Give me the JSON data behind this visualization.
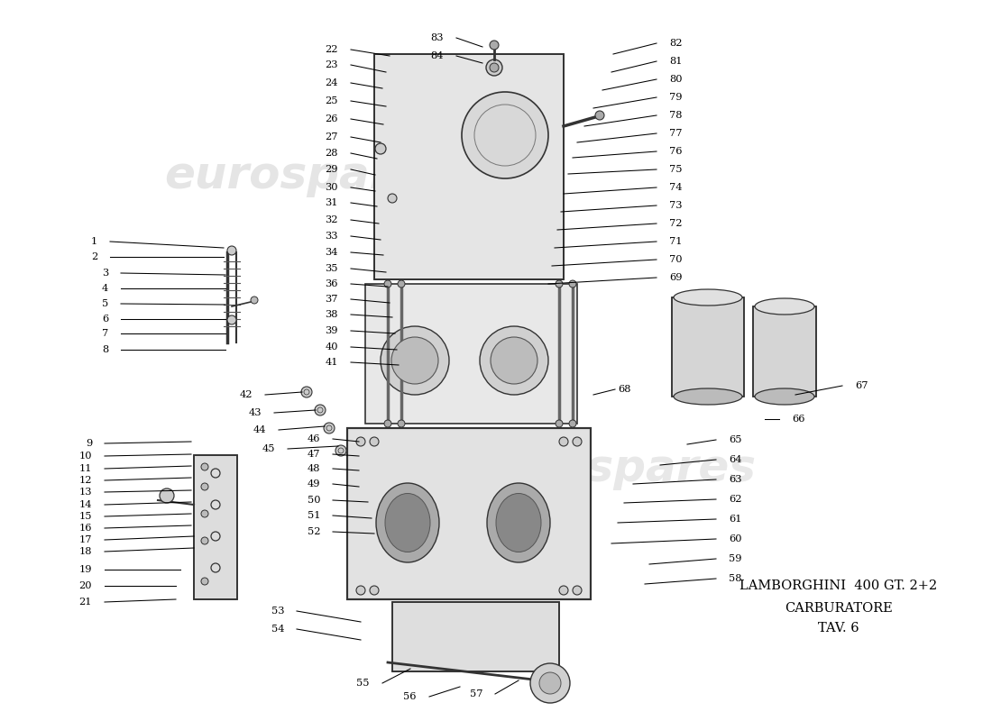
{
  "title_line1": "LAMBORGHINI  400 GT. 2+2",
  "title_line2": "CARBURATORE",
  "title_line3": "TAV. 6",
  "bg_color": "#ffffff",
  "watermark_color": "#cccccc",
  "line_color": "#000000",
  "draw_color": "#333333"
}
